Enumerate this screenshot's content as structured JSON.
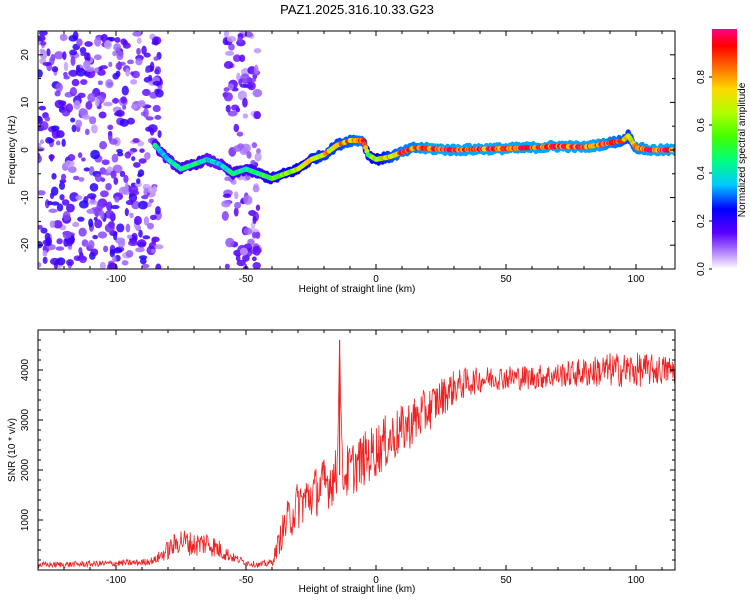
{
  "title": "PAZ1.2025.316.10.33.G23",
  "chart_data": [
    {
      "type": "heatmap",
      "title": "PAZ1.2025.316.10.33.G23",
      "xlabel": "Height of straight line (km)",
      "ylabel": "Frequency (Hz)",
      "xlim": [
        -130,
        115
      ],
      "ylim": [
        -25,
        25
      ],
      "xticks": [
        -100,
        -50,
        0,
        50,
        100
      ],
      "yticks": [
        -20,
        -10,
        0,
        10,
        20
      ],
      "colorbar": {
        "label": "Normalized spectral amplitude",
        "range": [
          0,
          1
        ],
        "ticks": [
          0.0,
          0.2,
          0.4,
          0.6,
          0.8
        ],
        "tick_labels": [
          "0.0",
          "0.2",
          "0.4",
          "0.6",
          "0.8"
        ],
        "colormap": "rainbow"
      },
      "dominant_frequency_trace": {
        "x": [
          -85,
          -80,
          -75,
          -70,
          -65,
          -60,
          -55,
          -50,
          -45,
          -40,
          -35,
          -30,
          -25,
          -20,
          -15,
          -10,
          -5,
          -3,
          0,
          5,
          10,
          15,
          20,
          30,
          40,
          50,
          60,
          70,
          80,
          85,
          90,
          95,
          97,
          100,
          105,
          110,
          115
        ],
        "y": [
          1,
          -2,
          -4,
          -3,
          -2,
          -3,
          -5,
          -4,
          -5,
          -6,
          -5,
          -4,
          -2,
          -1,
          1,
          2,
          2,
          -1,
          -2,
          -1.5,
          -0.5,
          0.5,
          0.3,
          0,
          0.2,
          0.3,
          0.5,
          0.8,
          0.6,
          1,
          1.5,
          2,
          3,
          0.5,
          0,
          0,
          0
        ],
        "amplitude": [
          0.45,
          0.4,
          0.45,
          0.5,
          0.4,
          0.4,
          0.5,
          0.45,
          0.55,
          0.6,
          0.65,
          0.7,
          0.75,
          0.8,
          0.8,
          0.85,
          0.9,
          0.6,
          0.7,
          0.8,
          0.9,
          0.9,
          0.95,
          0.95,
          0.95,
          0.95,
          0.95,
          0.95,
          0.95,
          0.95,
          0.9,
          0.85,
          0.8,
          0.9,
          0.95,
          0.95,
          0.95
        ]
      },
      "noise_regions": [
        {
          "x_range": [
            -130,
            -83
          ],
          "y_range": [
            -25,
            25
          ],
          "amplitude": 0.15
        },
        {
          "x_range": [
            -58,
            -45
          ],
          "y_range": [
            -25,
            25
          ],
          "amplitude": 0.12
        }
      ]
    },
    {
      "type": "line",
      "xlabel": "Height of straight line (km)",
      "ylabel": "SNR (10 * v/v)",
      "xlim": [
        -130,
        115
      ],
      "ylim": [
        0,
        4800
      ],
      "xticks": [
        -100,
        -50,
        0,
        50,
        100
      ],
      "yticks": [
        1000,
        2000,
        3000,
        4000
      ],
      "series": [
        {
          "name": "SNR",
          "color": "#ee2222",
          "x": [
            -130,
            -110,
            -90,
            -85,
            -80,
            -75,
            -70,
            -65,
            -60,
            -55,
            -50,
            -45,
            -40,
            -35,
            -30,
            -25,
            -20,
            -15,
            -14,
            -13,
            -10,
            -5,
            0,
            5,
            10,
            15,
            20,
            25,
            30,
            35,
            40,
            45,
            50,
            60,
            70,
            80,
            90,
            100,
            110,
            115
          ],
          "y": [
            100,
            120,
            150,
            200,
            400,
            600,
            500,
            550,
            400,
            250,
            150,
            100,
            150,
            900,
            1300,
            1500,
            1700,
            1900,
            4600,
            1900,
            2000,
            2200,
            2400,
            2600,
            2800,
            3000,
            3200,
            3450,
            3650,
            3750,
            3800,
            3850,
            3850,
            3850,
            3900,
            3950,
            4000,
            4000,
            4000,
            4000
          ],
          "noise_amplitude": [
            60,
            60,
            70,
            80,
            200,
            250,
            250,
            250,
            200,
            100,
            60,
            60,
            80,
            400,
            500,
            500,
            550,
            550,
            0,
            550,
            550,
            550,
            550,
            550,
            500,
            500,
            450,
            400,
            350,
            300,
            250,
            250,
            250,
            250,
            250,
            300,
            350,
            350,
            300,
            300
          ]
        }
      ]
    }
  ]
}
